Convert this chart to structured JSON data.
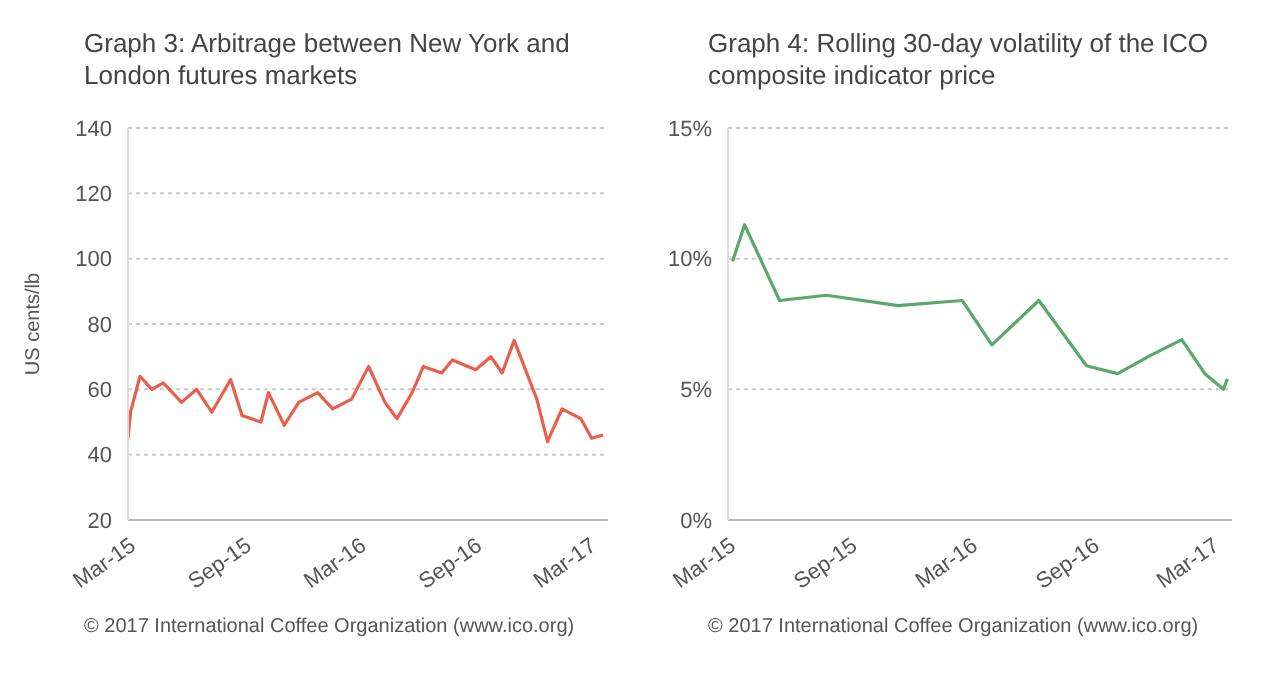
{
  "chart_data": [
    {
      "type": "line",
      "title": "Graph 3:   Arbitrage between New York and London futures markets",
      "ylabel": "US cents/lb",
      "x": [
        "2015-03-01",
        "2015-03-05",
        "2015-03-20",
        "2015-04-08",
        "2015-04-26",
        "2015-05-25",
        "2015-06-18",
        "2015-07-12",
        "2015-08-11",
        "2015-08-29",
        "2015-09-28",
        "2015-10-10",
        "2015-11-04",
        "2015-11-27",
        "2015-12-27",
        "2016-01-20",
        "2016-02-19",
        "2016-03-17",
        "2016-04-12",
        "2016-05-01",
        "2016-05-25",
        "2016-06-12",
        "2016-07-11",
        "2016-07-28",
        "2016-09-03",
        "2016-09-27",
        "2016-10-15",
        "2016-11-03",
        "2016-12-09",
        "2016-12-26",
        "2017-01-18",
        "2017-02-17",
        "2017-03-06",
        "2017-03-24"
      ],
      "series": [
        {
          "color": "#e8604c",
          "values": [
            45,
            53,
            64,
            60,
            62,
            56,
            60,
            53,
            63,
            52,
            50,
            59,
            49,
            56,
            59,
            54,
            57,
            67,
            56,
            51,
            59,
            67,
            65,
            69,
            66,
            70,
            65,
            75,
            57,
            44,
            54,
            51,
            45,
            46
          ]
        }
      ],
      "xlim": [
        "2015-03-01",
        "2017-04-01"
      ],
      "xticks": [
        {
          "value": "2015-03-01",
          "label": "Mar-15"
        },
        {
          "value": "2015-09-01",
          "label": "Sep-15"
        },
        {
          "value": "2016-03-01",
          "label": "Mar-16"
        },
        {
          "value": "2016-09-01",
          "label": "Sep-16"
        },
        {
          "value": "2017-03-01",
          "label": "Mar-17"
        }
      ],
      "ylim": [
        20,
        140
      ],
      "yticks": [
        20,
        40,
        60,
        80,
        100,
        120,
        140
      ],
      "grid": "y",
      "annotations": [
        "© 2017 International Coffee Organization (www.ico.org)"
      ]
    },
    {
      "type": "line",
      "title": "Graph 4:   Rolling 30-day volatility of the ICO composite indicator price",
      "x": [
        "2015-03-08",
        "2015-03-26",
        "2015-05-07",
        "2015-05-18",
        "2015-07-28",
        "2015-11-13",
        "2016-02-18",
        "2016-04-03",
        "2016-06-13",
        "2016-08-24",
        "2016-10-10",
        "2016-11-29",
        "2017-01-15",
        "2017-02-19",
        "2017-03-19",
        "2017-03-25"
      ],
      "series": [
        {
          "color": "#5aa86a",
          "values": [
            9.9,
            11.3,
            9.0,
            8.4,
            8.6,
            8.2,
            8.4,
            6.7,
            8.4,
            5.9,
            5.6,
            6.3,
            6.9,
            5.6,
            5.0,
            5.4
          ]
        }
      ],
      "xlim": [
        "2015-03-01",
        "2017-04-01"
      ],
      "xticks": [
        {
          "value": "2015-03-01",
          "label": "Mar-15"
        },
        {
          "value": "2015-09-01",
          "label": "Sep-15"
        },
        {
          "value": "2016-03-01",
          "label": "Mar-16"
        },
        {
          "value": "2016-09-01",
          "label": "Sep-16"
        },
        {
          "value": "2017-03-01",
          "label": "Mar-17"
        }
      ],
      "ylim": [
        0,
        15
      ],
      "yticks": [
        {
          "value": 0,
          "label": "0%"
        },
        {
          "value": 5,
          "label": "5%"
        },
        {
          "value": 10,
          "label": "10%"
        },
        {
          "value": 15,
          "label": "15%"
        }
      ],
      "grid": "y",
      "annotations": [
        "© 2017 International Coffee Organization (www.ico.org)"
      ]
    }
  ]
}
